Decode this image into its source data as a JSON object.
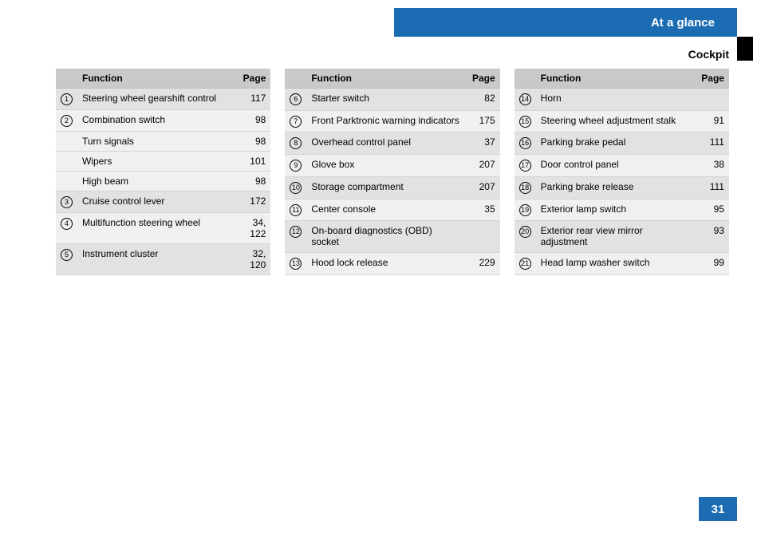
{
  "header": {
    "tab_label": "At a glance",
    "section": "Cockpit"
  },
  "page_number": "31",
  "colors": {
    "accent": "#1b6cb3",
    "header_row": "#c9c9c9",
    "row_alt": "#e2e2e2",
    "row_plain": "#f0f0f0",
    "border": "#d4d4d4"
  },
  "columns": {
    "num": "",
    "function": "Function",
    "page": "Page"
  },
  "tables": [
    {
      "rows": [
        {
          "num": "1",
          "label": "Steering wheel gearshift control",
          "page": "117",
          "alt": true
        },
        {
          "num": "2",
          "label": "Combination switch",
          "page": "98",
          "alt": false
        },
        {
          "num": "",
          "label": "Turn signals",
          "page": "98",
          "alt": false
        },
        {
          "num": "",
          "label": "Wipers",
          "page": "101",
          "alt": false
        },
        {
          "num": "",
          "label": "High beam",
          "page": "98",
          "alt": false
        },
        {
          "num": "3",
          "label": "Cruise control lever",
          "page": "172",
          "alt": true
        },
        {
          "num": "4",
          "label": "Multifunction steering wheel",
          "page": "34, 122",
          "alt": false
        },
        {
          "num": "5",
          "label": "Instrument cluster",
          "page": "32, 120",
          "alt": true
        }
      ]
    },
    {
      "rows": [
        {
          "num": "6",
          "label": "Starter switch",
          "page": "82",
          "alt": true
        },
        {
          "num": "7",
          "label": "Front Parktronic warning indicators",
          "page": "175",
          "alt": false
        },
        {
          "num": "8",
          "label": "Overhead control panel",
          "page": "37",
          "alt": true
        },
        {
          "num": "9",
          "label": "Glove box",
          "page": "207",
          "alt": false
        },
        {
          "num": "10",
          "label": "Storage compartment",
          "page": "207",
          "alt": true
        },
        {
          "num": "11",
          "label": "Center console",
          "page": "35",
          "alt": false
        },
        {
          "num": "12",
          "label": "On-board diagnostics (OBD) socket",
          "page": "",
          "alt": true
        },
        {
          "num": "13",
          "label": "Hood lock release",
          "page": "229",
          "alt": false
        }
      ]
    },
    {
      "rows": [
        {
          "num": "14",
          "label": "Horn",
          "page": "",
          "alt": true
        },
        {
          "num": "15",
          "label": "Steering wheel adjustment stalk",
          "page": "91",
          "alt": false
        },
        {
          "num": "16",
          "label": "Parking brake pedal",
          "page": "111",
          "alt": true
        },
        {
          "num": "17",
          "label": "Door control panel",
          "page": "38",
          "alt": false
        },
        {
          "num": "18",
          "label": "Parking brake release",
          "page": "111",
          "alt": true
        },
        {
          "num": "19",
          "label": "Exterior lamp switch",
          "page": "95",
          "alt": false
        },
        {
          "num": "20",
          "label": "Exterior rear view mirror adjustment",
          "page": "93",
          "alt": true
        },
        {
          "num": "21",
          "label": "Head lamp washer switch",
          "page": "99",
          "alt": false
        }
      ]
    }
  ]
}
